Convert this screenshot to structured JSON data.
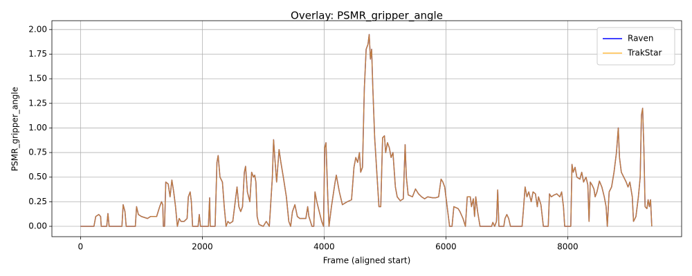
{
  "chart_data": {
    "type": "line",
    "title": "Overlay: PSMR_gripper_angle",
    "x_label": "Frame (aligned start)",
    "y_label": "PSMR_gripper_angle",
    "x": [
      0,
      220,
      250,
      300,
      330,
      340,
      430,
      450,
      470,
      680,
      700,
      730,
      750,
      900,
      920,
      950,
      1000,
      1100,
      1150,
      1250,
      1300,
      1330,
      1350,
      1360,
      1380,
      1400,
      1440,
      1470,
      1500,
      1530,
      1560,
      1590,
      1620,
      1650,
      1700,
      1750,
      1770,
      1800,
      1820,
      1840,
      1930,
      1950,
      1970,
      2100,
      2120,
      2130,
      2210,
      2240,
      2260,
      2290,
      2330,
      2360,
      2390,
      2420,
      2450,
      2500,
      2550,
      2570,
      2600,
      2630,
      2660,
      2690,
      2710,
      2740,
      2780,
      2810,
      2840,
      2860,
      2880,
      2900,
      2930,
      3000,
      3050,
      3100,
      3150,
      3170,
      3190,
      3220,
      3260,
      3290,
      3330,
      3380,
      3420,
      3450,
      3480,
      3520,
      3560,
      3600,
      3700,
      3730,
      3750,
      3800,
      3830,
      3850,
      3880,
      3920,
      3960,
      3990,
      4010,
      4030,
      4060,
      4080,
      4120,
      4180,
      4200,
      4250,
      4300,
      4380,
      4450,
      4490,
      4520,
      4550,
      4580,
      4600,
      4630,
      4660,
      4690,
      4720,
      4740,
      4760,
      4780,
      4800,
      4830,
      4870,
      4900,
      4930,
      4960,
      4990,
      5010,
      5040,
      5070,
      5100,
      5130,
      5170,
      5200,
      5250,
      5300,
      5330,
      5350,
      5380,
      5450,
      5500,
      5550,
      5600,
      5650,
      5700,
      5780,
      5830,
      5880,
      5920,
      5950,
      5980,
      6000,
      6060,
      6100,
      6130,
      6200,
      6230,
      6280,
      6320,
      6350,
      6400,
      6420,
      6450,
      6470,
      6490,
      6520,
      6560,
      6750,
      6770,
      6800,
      6830,
      6850,
      6870,
      6950,
      6970,
      7000,
      7030,
      7060,
      7250,
      7270,
      7300,
      7330,
      7360,
      7400,
      7430,
      7470,
      7500,
      7520,
      7560,
      7600,
      7680,
      7700,
      7730,
      7780,
      7820,
      7870,
      7900,
      7930,
      7950,
      8050,
      8070,
      8090,
      8120,
      8150,
      8200,
      8230,
      8260,
      8300,
      8330,
      8350,
      8370,
      8400,
      8430,
      8450,
      8480,
      8520,
      8560,
      8600,
      8630,
      8650,
      8680,
      8720,
      8760,
      8800,
      8830,
      8850,
      8880,
      8920,
      8960,
      8990,
      9020,
      9060,
      9080,
      9120,
      9160,
      9190,
      9210,
      9230,
      9250,
      9270,
      9300,
      9320,
      9340,
      9360,
      9380
    ],
    "series": [
      {
        "name": "Raven",
        "color": "#0000ff",
        "alpha": 1,
        "values": [
          0,
          0,
          0.1,
          0.12,
          0.1,
          0,
          0,
          0.13,
          0,
          0,
          0.22,
          0.15,
          0,
          0,
          0.2,
          0.12,
          0.1,
          0.08,
          0.1,
          0.1,
          0.2,
          0.25,
          0.22,
          0,
          0,
          0.45,
          0.43,
          0.3,
          0.47,
          0.35,
          0.2,
          0,
          0.08,
          0.05,
          0.05,
          0.08,
          0.3,
          0.35,
          0.25,
          0,
          0,
          0.12,
          0,
          0,
          0.29,
          0,
          0,
          0.65,
          0.72,
          0.5,
          0.45,
          0.2,
          0,
          0.05,
          0.03,
          0.05,
          0.3,
          0.4,
          0.2,
          0.15,
          0.2,
          0.55,
          0.61,
          0.35,
          0.25,
          0.55,
          0.5,
          0.52,
          0.45,
          0.1,
          0.02,
          0,
          0.05,
          0,
          0.5,
          0.88,
          0.7,
          0.45,
          0.78,
          0.65,
          0.5,
          0.3,
          0.05,
          0,
          0.15,
          0.22,
          0.1,
          0.08,
          0.08,
          0.2,
          0.1,
          0,
          0,
          0.35,
          0.25,
          0.15,
          0.05,
          0,
          0.8,
          0.85,
          0.3,
          0,
          0.2,
          0.45,
          0.52,
          0.35,
          0.22,
          0.25,
          0.27,
          0.6,
          0.7,
          0.65,
          0.75,
          0.55,
          0.6,
          1.4,
          1.8,
          1.85,
          1.95,
          1.7,
          1.8,
          1.4,
          0.9,
          0.5,
          0.2,
          0.2,
          0.9,
          0.92,
          0.75,
          0.85,
          0.8,
          0.7,
          0.75,
          0.4,
          0.3,
          0.26,
          0.28,
          0.83,
          0.5,
          0.32,
          0.3,
          0.38,
          0.33,
          0.3,
          0.28,
          0.3,
          0.29,
          0.29,
          0.3,
          0.48,
          0.45,
          0.4,
          0.3,
          0,
          0,
          0.2,
          0.18,
          0.15,
          0.08,
          0,
          0.3,
          0.3,
          0.2,
          0.28,
          0.1,
          0.3,
          0.15,
          0,
          0,
          0.04,
          0,
          0.05,
          0.37,
          0,
          0,
          0.08,
          0.12,
          0.08,
          0,
          0,
          0.15,
          0.4,
          0.3,
          0.35,
          0.25,
          0.35,
          0.33,
          0.2,
          0.3,
          0.22,
          0,
          0,
          0.33,
          0.3,
          0.32,
          0.33,
          0.3,
          0.35,
          0.2,
          0,
          0,
          0.63,
          0.55,
          0.6,
          0.5,
          0.48,
          0.55,
          0.45,
          0.5,
          0.42,
          0.05,
          0.45,
          0.42,
          0.38,
          0.3,
          0.35,
          0.46,
          0.4,
          0.3,
          0.2,
          0,
          0.35,
          0.4,
          0.55,
          0.75,
          1.0,
          0.7,
          0.55,
          0.5,
          0.45,
          0.4,
          0.45,
          0.3,
          0.05,
          0.1,
          0.3,
          0.5,
          1.13,
          1.2,
          0.8,
          0.2,
          0.18,
          0.27,
          0.2,
          0.27,
          0
        ]
      },
      {
        "name": "TrakStar",
        "color": "#ffa500",
        "alpha": 0.75,
        "values": [
          0,
          0,
          0.1,
          0.12,
          0.1,
          0,
          0,
          0.13,
          0,
          0,
          0.22,
          0.15,
          0,
          0,
          0.2,
          0.12,
          0.1,
          0.08,
          0.1,
          0.1,
          0.2,
          0.25,
          0.22,
          0,
          0,
          0.45,
          0.43,
          0.3,
          0.47,
          0.35,
          0.2,
          0,
          0.08,
          0.05,
          0.05,
          0.08,
          0.3,
          0.35,
          0.25,
          0,
          0,
          0.12,
          0,
          0,
          0.29,
          0,
          0,
          0.65,
          0.72,
          0.5,
          0.45,
          0.2,
          0,
          0.05,
          0.03,
          0.05,
          0.3,
          0.4,
          0.2,
          0.15,
          0.2,
          0.55,
          0.61,
          0.35,
          0.25,
          0.55,
          0.5,
          0.52,
          0.45,
          0.1,
          0.02,
          0,
          0.05,
          0,
          0.5,
          0.88,
          0.7,
          0.45,
          0.78,
          0.65,
          0.5,
          0.3,
          0.05,
          0,
          0.15,
          0.22,
          0.1,
          0.08,
          0.08,
          0.2,
          0.1,
          0,
          0,
          0.35,
          0.25,
          0.15,
          0.05,
          0,
          0.8,
          0.85,
          0.3,
          0,
          0.2,
          0.45,
          0.52,
          0.35,
          0.22,
          0.25,
          0.27,
          0.6,
          0.7,
          0.65,
          0.75,
          0.55,
          0.6,
          1.4,
          1.8,
          1.85,
          1.95,
          1.7,
          1.8,
          1.4,
          0.9,
          0.5,
          0.2,
          0.2,
          0.9,
          0.92,
          0.75,
          0.85,
          0.8,
          0.7,
          0.75,
          0.4,
          0.3,
          0.26,
          0.28,
          0.83,
          0.5,
          0.32,
          0.3,
          0.38,
          0.33,
          0.3,
          0.28,
          0.3,
          0.29,
          0.29,
          0.3,
          0.48,
          0.45,
          0.4,
          0.3,
          0,
          0,
          0.2,
          0.18,
          0.15,
          0.08,
          0,
          0.3,
          0.3,
          0.2,
          0.28,
          0.1,
          0.3,
          0.15,
          0,
          0,
          0.04,
          0,
          0.05,
          0.37,
          0,
          0,
          0.08,
          0.12,
          0.08,
          0,
          0,
          0.15,
          0.4,
          0.3,
          0.35,
          0.25,
          0.35,
          0.33,
          0.2,
          0.3,
          0.22,
          0,
          0,
          0.33,
          0.3,
          0.32,
          0.33,
          0.3,
          0.35,
          0.2,
          0,
          0,
          0.63,
          0.55,
          0.6,
          0.5,
          0.48,
          0.55,
          0.45,
          0.5,
          0.42,
          0.05,
          0.45,
          0.42,
          0.38,
          0.3,
          0.35,
          0.46,
          0.4,
          0.3,
          0.2,
          0,
          0.35,
          0.4,
          0.55,
          0.75,
          1.0,
          0.7,
          0.55,
          0.5,
          0.45,
          0.4,
          0.45,
          0.3,
          0.05,
          0.1,
          0.3,
          0.5,
          1.13,
          1.2,
          0.8,
          0.2,
          0.18,
          0.27,
          0.2,
          0.27,
          0
        ]
      }
    ],
    "xlim": [
      -470,
      9870
    ],
    "ylim": [
      -0.105,
      2.09
    ],
    "xticks": [
      0,
      2000,
      4000,
      6000,
      8000
    ],
    "yticks": [
      {
        "value": 0,
        "label": "0.00"
      },
      {
        "value": 0.25,
        "label": "0.25"
      },
      {
        "value": 0.5,
        "label": "0.50"
      },
      {
        "value": 0.75,
        "label": "0.75"
      },
      {
        "value": 1,
        "label": "1.00"
      },
      {
        "value": 1.25,
        "label": "1.25"
      },
      {
        "value": 1.5,
        "label": "1.50"
      },
      {
        "value": 1.75,
        "label": "1.75"
      },
      {
        "value": 2,
        "label": "2.00"
      }
    ],
    "grid": true,
    "legend_position": "upper right"
  }
}
